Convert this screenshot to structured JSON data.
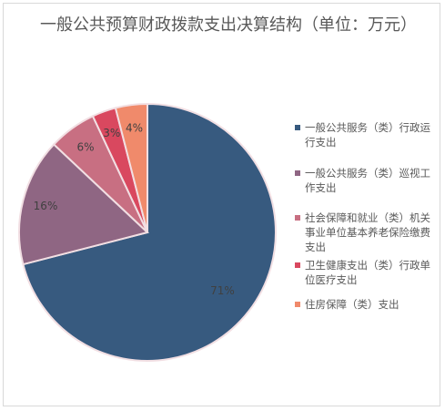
{
  "chart_data": {
    "type": "pie",
    "title": "一般公共预算财政拨款支出决算结构（单位：万元）",
    "slices": [
      {
        "name": "一般公共服务（类）行政运行支出",
        "value": 71,
        "label": "71%",
        "color": "#375a7f"
      },
      {
        "name": "一般公共服务（类）巡视工作支出",
        "value": 16,
        "label": "16%",
        "color": "#8f6683"
      },
      {
        "name": "社会保障和就业（类）机关事业单位基本养老保险缴费支出",
        "value": 6,
        "label": "6%",
        "color": "#c86f82"
      },
      {
        "name": "卫生健康支出（类）行政单位医疗支出",
        "value": 3,
        "label": "3%",
        "color": "#d9485f"
      },
      {
        "name": "住房保障（类）支出",
        "value": 4,
        "label": "4%",
        "color": "#f08a6b"
      }
    ],
    "legend_position": "right"
  }
}
